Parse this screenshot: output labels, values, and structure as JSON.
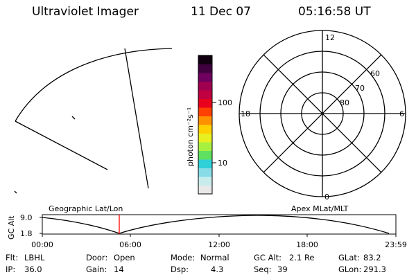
{
  "header": {
    "title": "Ultraviolet Imager",
    "date": "11 Dec 07",
    "time": "05:16:58 UT"
  },
  "colorbar": {
    "unit_label": "photon cm⁻²s⁻¹",
    "ticks": [
      {
        "label": "100",
        "value": 100
      },
      {
        "label": "10",
        "value": 10
      }
    ],
    "colors": [
      "#e8e8e8",
      "#c8ecec",
      "#88dce8",
      "#30d0d8",
      "#60e060",
      "#a8f040",
      "#e8f020",
      "#ffd000",
      "#ff9000",
      "#ff4000",
      "#e8001c",
      "#c00040",
      "#a00050",
      "#700060",
      "#400040",
      "#100010"
    ]
  },
  "polar_plot": {
    "mlt_labels": {
      "top": "12",
      "left": "18",
      "right": "6",
      "bottom": "0"
    },
    "lat_labels": [
      "60",
      "70",
      "80"
    ]
  },
  "timeline": {
    "left_label": "Geographic Lat/Lon",
    "right_label": "Apex MLat/MLT",
    "axis_title": "GC Alt",
    "y_ticks": [
      "9.0",
      "1.8"
    ],
    "x_ticks": [
      "00:00",
      "06:00",
      "12:00",
      "18:00",
      "23:59"
    ],
    "current_time_marker_color": "#ff0000"
  },
  "status": {
    "flt_label": "Flt:",
    "flt_value": "LBHL",
    "ip_label": "IP:",
    "ip_value": "36.0",
    "door_label": "Door:",
    "door_value": "Open",
    "gain_label": "Gain:",
    "gain_value": "14",
    "mode_label": "Mode:",
    "mode_value": "Normal",
    "dsp_label": "Dsp:",
    "dsp_value": "4.3",
    "gcalt_label": "GC Alt:",
    "gcalt_value": "2.1 Re",
    "seq_label": "Seq:",
    "seq_value": "39",
    "glat_label": "GLat:",
    "glat_value": "83.2",
    "glon_label": "GLon:",
    "glon_value": "291.3"
  }
}
